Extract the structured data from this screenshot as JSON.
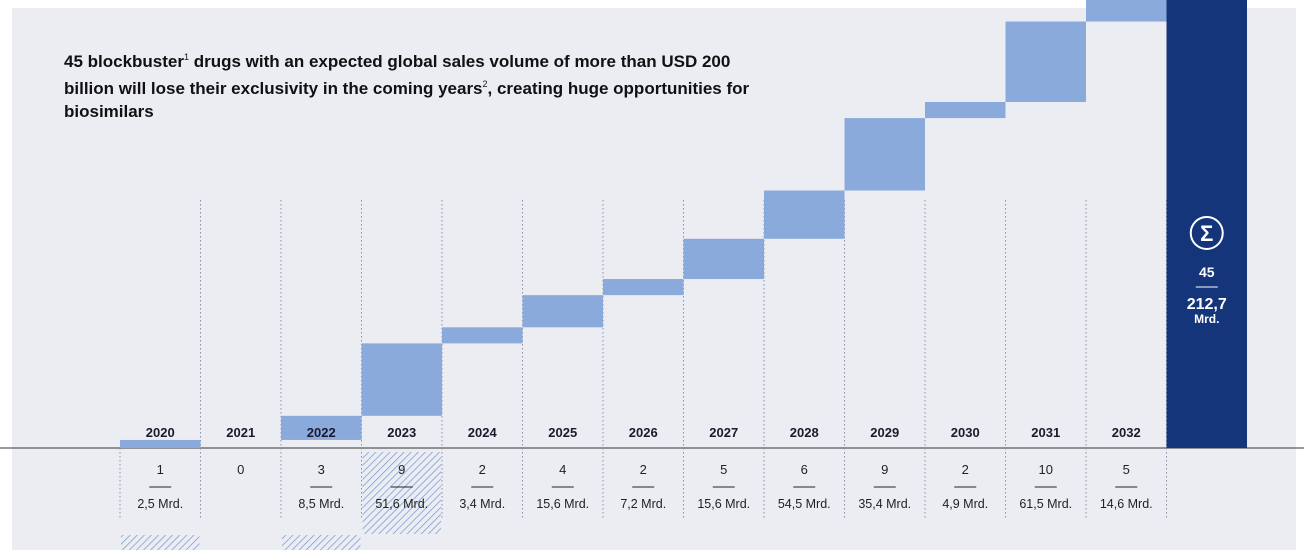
{
  "title": {
    "part1": "45 blockbuster",
    "sup1": "1",
    "part2": " drugs with an expected global sales volume of more than USD 200 billion will lose their exclusivity in the coming years",
    "sup2": "2",
    "part3": ", creating huge opportunities for biosimilars"
  },
  "colors": {
    "bar": "#8aaadc",
    "total": "#14357a",
    "hatch": "#7f9fd2",
    "axis": "#333333"
  },
  "chart_data": {
    "type": "bar",
    "subtype": "waterfall",
    "categories": [
      "2020",
      "2021",
      "2022",
      "2023",
      "2024",
      "2025",
      "2026",
      "2027",
      "2028",
      "2029",
      "2030",
      "2031",
      "2032"
    ],
    "series": [
      {
        "values": [
          1,
          0,
          3,
          9,
          2,
          4,
          2,
          5,
          6,
          9,
          2,
          10,
          5
        ]
      },
      {
        "values": [
          2.5,
          0,
          8.5,
          51.6,
          3.4,
          15.6,
          7.2,
          15.6,
          54.5,
          35.4,
          4.9,
          61.5,
          14.6
        ]
      }
    ],
    "count_labels": [
      "1",
      "0",
      "3",
      "9",
      "2",
      "4",
      "2",
      "5",
      "6",
      "9",
      "2",
      "10",
      "5"
    ],
    "sales_labels": [
      "2,5 Mrd.",
      "",
      "8,5 Mrd.",
      "51,6 Mrd.",
      "3,4 Mrd.",
      "15,6 Mrd.",
      "7,2 Mrd.",
      "15,6 Mrd.",
      "54,5 Mrd.",
      "35,4 Mrd.",
      "4,9 Mrd.",
      "61,5 Mrd.",
      "14,6 Mrd."
    ],
    "hatched_years": [
      "2020",
      "2022",
      "2023"
    ],
    "highlighted_year": "2025",
    "total": {
      "symbol": "Σ",
      "count": "45",
      "sales": "212,7",
      "unit": "Mrd."
    }
  }
}
